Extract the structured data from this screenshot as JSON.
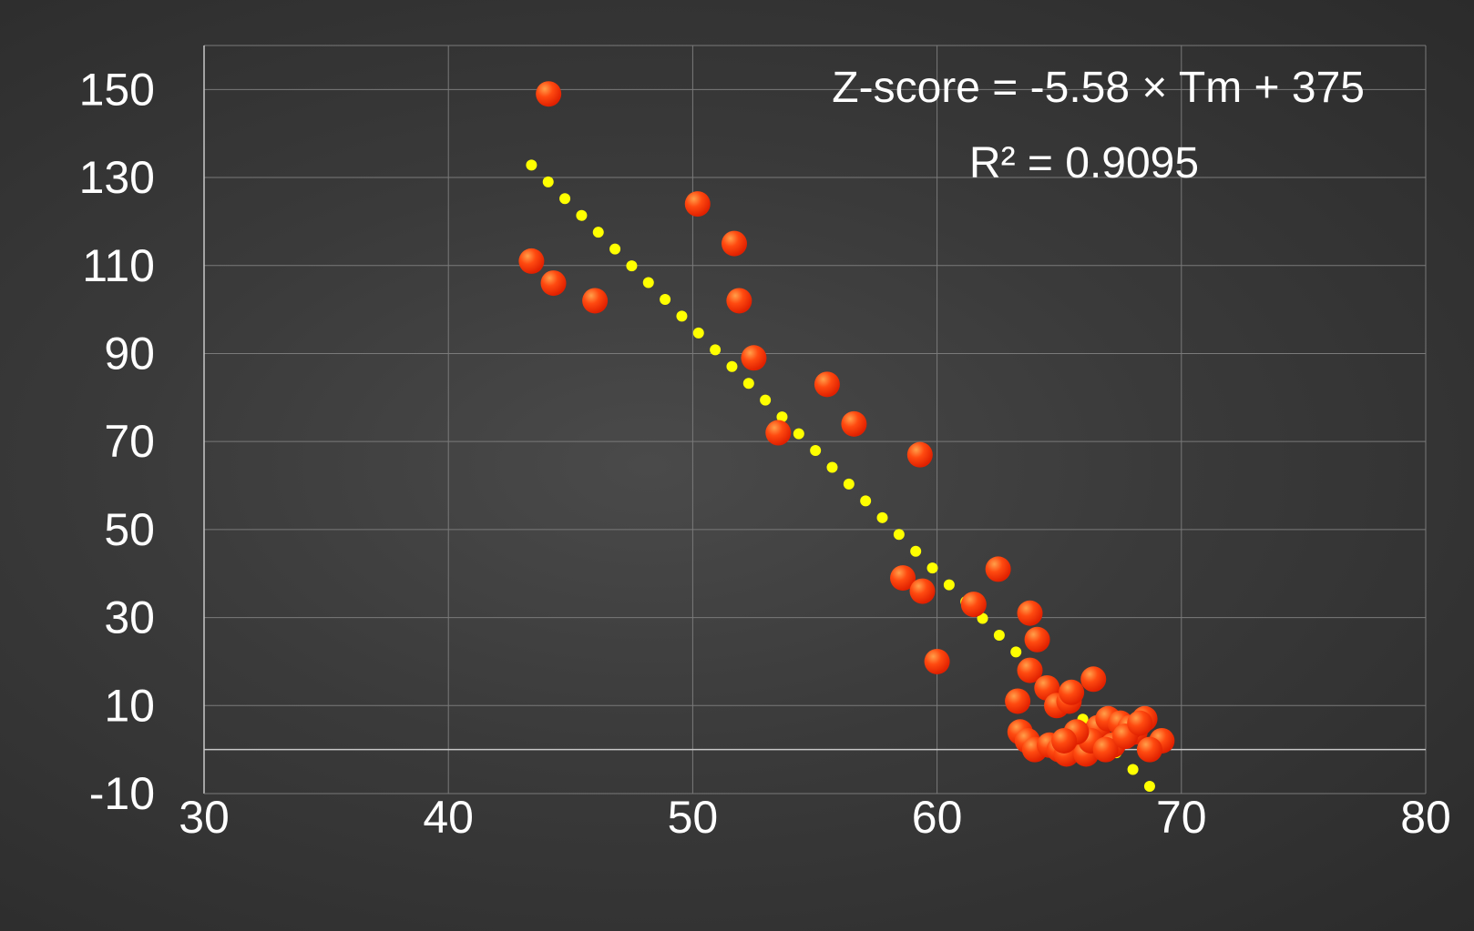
{
  "chart_data": {
    "type": "scatter",
    "title": "",
    "xlabel": "",
    "ylabel": "",
    "xlim": [
      30,
      80
    ],
    "ylim": [
      -10,
      160
    ],
    "xticks": [
      30,
      40,
      50,
      60,
      70,
      80
    ],
    "yticks": [
      -10,
      10,
      30,
      50,
      70,
      90,
      110,
      130,
      150
    ],
    "grid": true,
    "colors": {
      "point": "#ff3300",
      "point_highlight": "#ff9a40",
      "trend": "#ffff00",
      "grid": "#7a7a7a",
      "axis": "#c8c8c8",
      "text": "#ffffff"
    },
    "series": [
      {
        "name": "Z-score",
        "x": [
          44.1,
          43.4,
          44.3,
          46.0,
          50.2,
          51.7,
          51.9,
          52.5,
          53.5,
          55.5,
          56.6,
          59.3,
          58.6,
          59.4,
          60.0,
          61.5,
          62.5,
          63.8,
          64.1,
          63.8,
          63.3,
          64.5,
          64.9,
          65.4,
          66.4,
          65.5,
          63.4,
          63.7,
          64.0,
          64.6,
          65.0,
          65.3,
          65.8,
          66.1,
          66.6,
          67.0,
          67.5,
          68.1,
          68.5,
          69.2,
          68.7,
          67.9,
          67.2,
          66.3,
          65.7,
          66.9,
          67.7,
          68.3,
          65.2
        ],
        "y": [
          149,
          111,
          106,
          102,
          124,
          115,
          102,
          89,
          72,
          83,
          74,
          67,
          39,
          36,
          20,
          33,
          41,
          31,
          25,
          18,
          11,
          14,
          10,
          11,
          16,
          13,
          4,
          2,
          0,
          1,
          0,
          -1,
          3,
          -1,
          5,
          7,
          6,
          4,
          7,
          2,
          0,
          5,
          1,
          2,
          4,
          0,
          3,
          6,
          2
        ]
      }
    ],
    "trendline": {
      "type": "linear",
      "slope": -5.58,
      "intercept": 375,
      "x_range": [
        43.4,
        68.7
      ],
      "style": "dotted"
    },
    "annotations": {
      "equation": "Z-score = -5.58 × Tm + 375",
      "r_squared": "R² = 0.9095"
    }
  }
}
